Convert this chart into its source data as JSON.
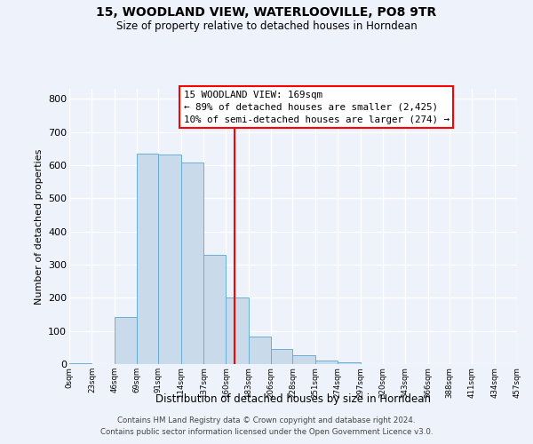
{
  "title": "15, WOODLAND VIEW, WATERLOOVILLE, PO8 9TR",
  "subtitle": "Size of property relative to detached houses in Horndean",
  "xlabel": "Distribution of detached houses by size in Horndean",
  "ylabel": "Number of detached properties",
  "bin_edges": [
    0,
    23,
    46,
    69,
    91,
    114,
    137,
    160,
    183,
    206,
    228,
    251,
    274,
    297,
    320,
    343,
    366,
    388,
    411,
    434,
    457
  ],
  "bin_labels": [
    "0sqm",
    "23sqm",
    "46sqm",
    "69sqm",
    "91sqm",
    "114sqm",
    "137sqm",
    "160sqm",
    "183sqm",
    "206sqm",
    "228sqm",
    "251sqm",
    "274sqm",
    "297sqm",
    "320sqm",
    "343sqm",
    "366sqm",
    "388sqm",
    "411sqm",
    "434sqm",
    "457sqm"
  ],
  "counts": [
    2,
    0,
    143,
    635,
    632,
    608,
    330,
    200,
    83,
    46,
    27,
    12,
    5,
    1,
    0,
    0,
    0,
    0,
    0,
    1
  ],
  "bar_facecolor": "#c9daea",
  "bar_edgecolor": "#6aaed6",
  "vline_x": 169,
  "vline_color": "red",
  "annotation_line1": "15 WOODLAND VIEW: 169sqm",
  "annotation_line2": "← 89% of detached houses are smaller (2,425)",
  "annotation_line3": "10% of semi-detached houses are larger (274) →",
  "ylim": [
    0,
    830
  ],
  "yticks": [
    0,
    100,
    200,
    300,
    400,
    500,
    600,
    700,
    800
  ],
  "bg_color": "#eef2fa",
  "grid_color": "white",
  "footer_line1": "Contains HM Land Registry data © Crown copyright and database right 2024.",
  "footer_line2": "Contains public sector information licensed under the Open Government Licence v3.0."
}
